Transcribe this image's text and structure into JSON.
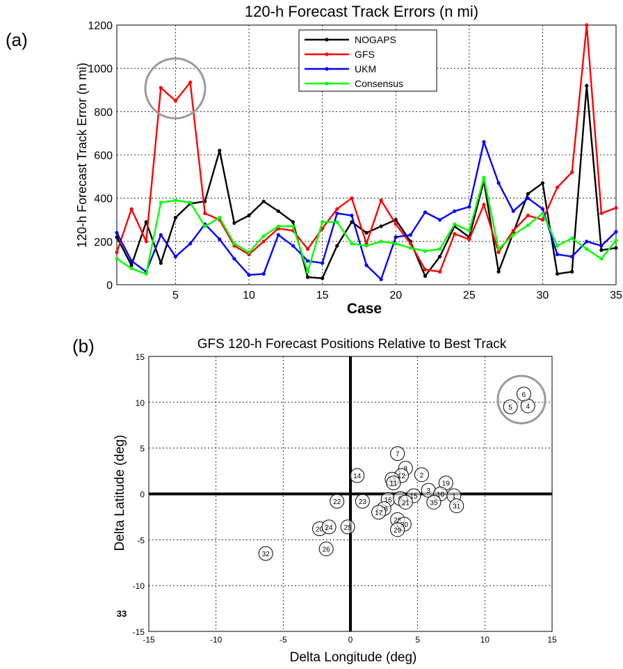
{
  "panel_labels": {
    "a": "(a)",
    "b": "(b)"
  },
  "colors": {
    "NOGAPS": "#000000",
    "GFS": "#ff0000",
    "UKM": "#0000ff",
    "Consensus": "#00ff00",
    "highlight_circle": "#999999",
    "grid": "#000000"
  },
  "chart_data": [
    {
      "type": "line",
      "title": "120-h Forecast Track Errors (n mi)",
      "xlabel": "Case",
      "ylabel": "120-h Forecast Track Error (n mi)",
      "xlim": [
        1,
        35
      ],
      "ylim": [
        0,
        1200
      ],
      "xticks": [
        5,
        10,
        15,
        20,
        25,
        30,
        35
      ],
      "yticks": [
        0,
        200,
        400,
        600,
        800,
        1000,
        1200
      ],
      "grid": true,
      "legend_position": "top-center",
      "x": [
        1,
        2,
        3,
        4,
        5,
        6,
        7,
        8,
        9,
        10,
        11,
        12,
        13,
        14,
        15,
        16,
        17,
        18,
        19,
        20,
        21,
        22,
        23,
        24,
        25,
        26,
        27,
        28,
        29,
        30,
        31,
        32,
        33,
        34,
        35
      ],
      "series": [
        {
          "name": "NOGAPS",
          "values": [
            220,
            90,
            290,
            100,
            310,
            375,
            385,
            620,
            285,
            320,
            385,
            340,
            290,
            35,
            30,
            180,
            290,
            240,
            270,
            300,
            200,
            40,
            130,
            270,
            220,
            480,
            60,
            240,
            420,
            470,
            50,
            60,
            920,
            160,
            170
          ]
        },
        {
          "name": "GFS",
          "values": [
            150,
            350,
            200,
            910,
            850,
            935,
            330,
            300,
            180,
            140,
            200,
            260,
            250,
            165,
            260,
            350,
            400,
            190,
            390,
            280,
            190,
            70,
            60,
            235,
            210,
            370,
            150,
            250,
            320,
            300,
            450,
            520,
            1200,
            330,
            355
          ]
        },
        {
          "name": "UKM",
          "values": [
            240,
            110,
            60,
            230,
            130,
            190,
            280,
            210,
            120,
            45,
            50,
            230,
            180,
            110,
            100,
            330,
            320,
            90,
            25,
            220,
            230,
            335,
            300,
            340,
            360,
            660,
            470,
            340,
            400,
            350,
            140,
            130,
            200,
            180,
            245
          ]
        },
        {
          "name": "Consensus",
          "values": [
            120,
            75,
            50,
            380,
            390,
            380,
            270,
            310,
            190,
            150,
            225,
            270,
            270,
            60,
            290,
            290,
            190,
            180,
            200,
            190,
            170,
            155,
            165,
            280,
            250,
            495,
            165,
            230,
            275,
            330,
            180,
            215,
            165,
            120,
            205
          ]
        }
      ],
      "highlight": {
        "cases": [
          4,
          5,
          6
        ]
      }
    },
    {
      "type": "scatter",
      "title": "GFS 120-h Forecast Positions Relative to Best Track",
      "xlabel": "Delta Longitude (deg)",
      "ylabel": "Delta Latitude (deg)",
      "xlim": [
        -15,
        15
      ],
      "ylim": [
        -15,
        15
      ],
      "xticks": [
        -15,
        -10,
        -5,
        0,
        5,
        10,
        15
      ],
      "yticks": [
        -15,
        -10,
        -5,
        0,
        5,
        10,
        15
      ],
      "grid": true,
      "points": [
        {
          "label": "2",
          "x": 5.3,
          "y": 2.1
        },
        {
          "label": "4",
          "x": 13.2,
          "y": 9.6
        },
        {
          "label": "5",
          "x": 11.9,
          "y": 9.5
        },
        {
          "label": "6",
          "x": 12.9,
          "y": 10.9
        },
        {
          "label": "7",
          "x": 3.5,
          "y": 4.4
        },
        {
          "label": "8",
          "x": 4.1,
          "y": 2.8
        },
        {
          "label": "12",
          "x": 3.8,
          "y": 2.0
        },
        {
          "label": "13",
          "x": 3.1,
          "y": 1.6
        },
        {
          "label": "14",
          "x": 0.5,
          "y": 2.0
        },
        {
          "label": "11",
          "x": 3.2,
          "y": 1.2
        },
        {
          "label": "19",
          "x": 7.1,
          "y": 1.2
        },
        {
          "label": "3",
          "x": 5.8,
          "y": 0.4
        },
        {
          "label": "10",
          "x": 6.7,
          "y": 0.0
        },
        {
          "label": "1",
          "x": 7.7,
          "y": -0.2
        },
        {
          "label": "15",
          "x": 4.7,
          "y": -0.2
        },
        {
          "label": "16",
          "x": 2.8,
          "y": -0.6
        },
        {
          "label": "9",
          "x": 3.7,
          "y": -0.5
        },
        {
          "label": "21",
          "x": 4.1,
          "y": -0.9
        },
        {
          "label": "35",
          "x": 6.2,
          "y": -0.9
        },
        {
          "label": "31",
          "x": 7.9,
          "y": -1.3
        },
        {
          "label": "18",
          "x": 2.5,
          "y": -1.6
        },
        {
          "label": "17",
          "x": 2.1,
          "y": -2.0
        },
        {
          "label": "22",
          "x": -1.0,
          "y": -0.8
        },
        {
          "label": "23",
          "x": 0.9,
          "y": -0.8
        },
        {
          "label": "28",
          "x": 3.5,
          "y": -2.8
        },
        {
          "label": "30",
          "x": 4.0,
          "y": -3.3
        },
        {
          "label": "29",
          "x": 3.5,
          "y": -3.9
        },
        {
          "label": "20",
          "x": -2.3,
          "y": -3.8
        },
        {
          "label": "24",
          "x": -1.6,
          "y": -3.6
        },
        {
          "label": "25",
          "x": -0.2,
          "y": -3.6
        },
        {
          "label": "26",
          "x": -1.8,
          "y": -6.0
        },
        {
          "label": "32",
          "x": -6.3,
          "y": -6.5
        }
      ],
      "offscale_label": "33",
      "highlight": {
        "labels": [
          "4",
          "5",
          "6"
        ]
      }
    }
  ]
}
